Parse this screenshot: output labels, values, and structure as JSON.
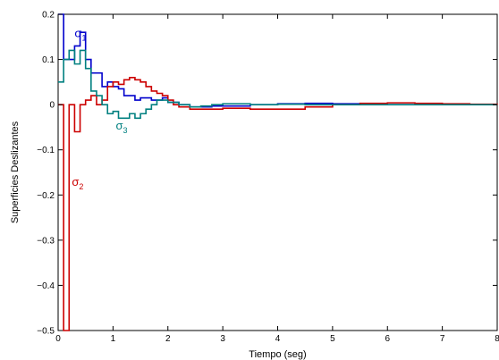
{
  "chart_data": {
    "type": "line",
    "step": true,
    "title": "",
    "xlabel": "Tiempo (seg)",
    "ylabel": "Superficies Deslizantes",
    "xlim": [
      0,
      8
    ],
    "ylim": [
      -0.5,
      0.2
    ],
    "xticks": [
      0,
      1,
      2,
      3,
      4,
      5,
      6,
      7,
      8
    ],
    "xtick_labels": [
      "0",
      "1",
      "2",
      "3",
      "4",
      "5",
      "6",
      "7",
      "8"
    ],
    "yticks": [
      -0.5,
      -0.4,
      -0.3,
      -0.2,
      -0.1,
      0,
      0.1,
      0.2
    ],
    "ytick_labels": [
      "−0.5",
      "−0.4",
      "−0.3",
      "−0.2",
      "−0.1",
      "0",
      "0.1",
      "0.2"
    ],
    "grid": false,
    "legend": "none",
    "series": [
      {
        "color": "#0000cc",
        "x": [
          0,
          0.1,
          0.2,
          0.3,
          0.4,
          0.5,
          0.6,
          0.7,
          0.8,
          0.9,
          1.0,
          1.1,
          1.2,
          1.3,
          1.4,
          1.5,
          1.6,
          1.7,
          1.8,
          1.9,
          2.0,
          2.2,
          2.4,
          2.6,
          2.8,
          3.0,
          3.5,
          4.0,
          4.5,
          5.0,
          5.5,
          6.0,
          6.5,
          7.0,
          7.5,
          8.0
        ],
        "y": [
          0.2,
          0.1,
          0.1,
          0.13,
          0.16,
          0.1,
          0.07,
          0.07,
          0.04,
          0.05,
          0.04,
          0.035,
          0.02,
          0.02,
          0.01,
          0.015,
          0.015,
          0.01,
          0.01,
          0.015,
          0.005,
          0.0,
          -0.005,
          -0.005,
          -0.003,
          -0.003,
          0.0,
          0.002,
          0.003,
          0.002,
          0.0,
          0.0,
          0.0,
          0.0,
          0.0,
          0.0
        ]
      },
      {
        "color": "#cc0000",
        "x": [
          0,
          0.1,
          0.2,
          0.3,
          0.4,
          0.5,
          0.6,
          0.7,
          0.8,
          0.9,
          1.0,
          1.1,
          1.2,
          1.3,
          1.4,
          1.5,
          1.6,
          1.7,
          1.8,
          1.9,
          2.0,
          2.1,
          2.2,
          2.4,
          2.6,
          2.8,
          3.0,
          3.5,
          4.0,
          4.5,
          5.0,
          5.5,
          6.0,
          6.5,
          7.0,
          7.5,
          8.0
        ],
        "y": [
          0.0,
          -0.5,
          0.0,
          -0.06,
          0.0,
          0.01,
          0.02,
          0.0,
          0.01,
          0.04,
          0.05,
          0.045,
          0.055,
          0.06,
          0.055,
          0.05,
          0.04,
          0.03,
          0.025,
          0.02,
          0.01,
          0.0,
          -0.005,
          -0.01,
          -0.01,
          -0.01,
          -0.008,
          -0.01,
          -0.01,
          -0.005,
          0.0,
          0.003,
          0.004,
          0.003,
          0.002,
          0.001,
          0.0
        ]
      },
      {
        "color": "#008080",
        "x": [
          0,
          0.1,
          0.2,
          0.3,
          0.4,
          0.5,
          0.6,
          0.7,
          0.8,
          0.9,
          1.0,
          1.1,
          1.2,
          1.3,
          1.4,
          1.5,
          1.6,
          1.7,
          1.8,
          1.9,
          2.0,
          2.2,
          2.4,
          2.6,
          2.8,
          3.0,
          3.5,
          4.0,
          4.5,
          5.0,
          5.5,
          6.0,
          6.5,
          7.0,
          7.5,
          8.0
        ],
        "y": [
          0.05,
          0.1,
          0.12,
          0.09,
          0.12,
          0.08,
          0.03,
          0.02,
          0.0,
          -0.02,
          -0.015,
          -0.03,
          -0.03,
          -0.02,
          -0.03,
          -0.02,
          -0.01,
          0.0,
          0.01,
          0.01,
          0.005,
          0.0,
          -0.005,
          -0.003,
          0.0,
          0.002,
          0.0,
          0.001,
          0.0,
          0.0,
          0.0,
          0.0,
          0.0,
          0.0,
          0.0,
          0.0
        ]
      }
    ],
    "annotations": [
      {
        "base": "σ",
        "sub": "1",
        "color": "#0000cc",
        "x": 0.3,
        "y": 0.15
      },
      {
        "base": "σ",
        "sub": "2",
        "color": "#cc0000",
        "x": 0.25,
        "y": -0.18
      },
      {
        "base": "σ",
        "sub": "3",
        "color": "#008080",
        "x": 1.05,
        "y": -0.055
      }
    ]
  }
}
